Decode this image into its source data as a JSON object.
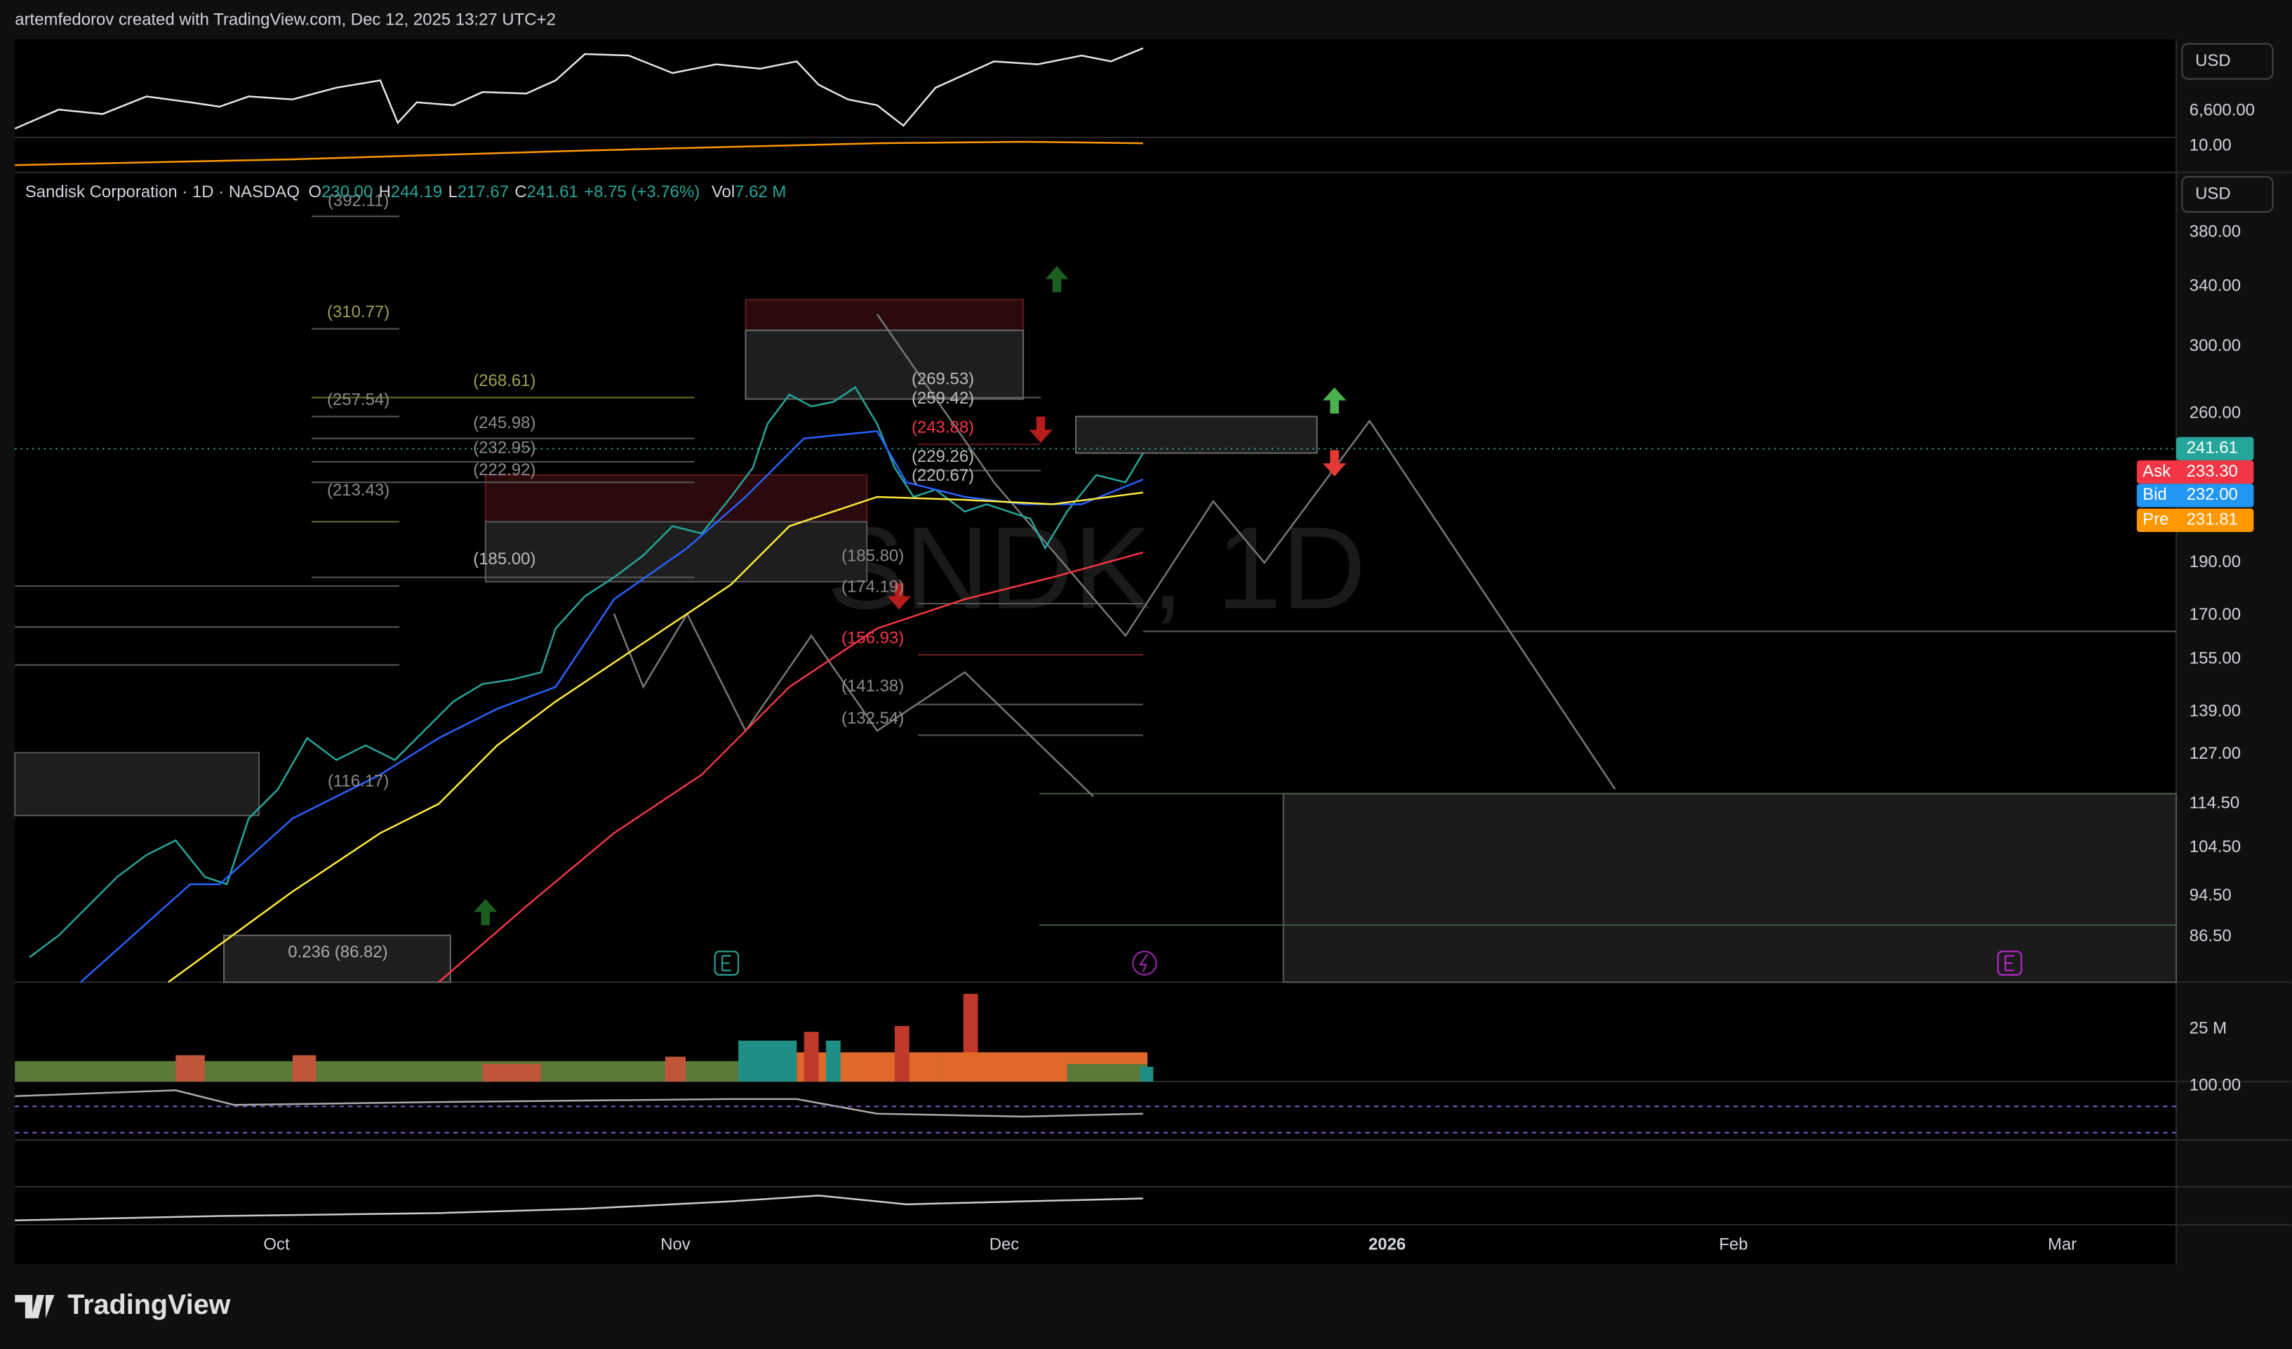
{
  "header": {
    "credit": "artemfedorov created with TradingView.com, Dec 12, 2025 13:27 UTC+2"
  },
  "top_pane": {
    "currency": "USD",
    "axis_labels": [
      "6,600.00",
      "10.00"
    ]
  },
  "legend": {
    "symbol": "Sandisk Corporation · 1D · NASDAQ",
    "open_label": "O",
    "open": "230.00",
    "high_label": "H",
    "high": "244.19",
    "low_label": "L",
    "low": "217.67",
    "close_label": "C",
    "close": "241.61",
    "change": "+8.75 (+3.76%)",
    "vol_label": "Vol",
    "vol": "7.62 M"
  },
  "watermark": "SNDK, 1D",
  "price_axis": {
    "currency": "USD",
    "labels": [
      "380.00",
      "340.00",
      "300.00",
      "260.00",
      "190.00",
      "170.00",
      "155.00",
      "139.00",
      "127.00",
      "114.50",
      "104.50",
      "94.50",
      "86.50"
    ]
  },
  "badges": {
    "last": "241.61",
    "ask_label": "Ask",
    "ask": "233.30",
    "bid_label": "Bid",
    "bid": "232.00",
    "pre_label": "Pre",
    "pre": "231.81"
  },
  "levels": [
    "(392.11)",
    "(310.77)",
    "(268.61)",
    "(257.54)",
    "(245.98)",
    "(232.95)",
    "(222.92)",
    "(213.43)",
    "(185.00)",
    "(269.53)",
    "(259.42)",
    "(243.88)",
    "(229.26)",
    "(220.67)",
    "(185.80)",
    "(174.19)",
    "(156.93)",
    "(141.38)",
    "(132.54)",
    "(116.17)",
    "0.236 (86.82)"
  ],
  "volume_axis": "25 M",
  "indicator_axis": "100.00",
  "time_axis": [
    "Oct",
    "Nov",
    "Dec",
    "2026",
    "Feb",
    "Mar"
  ],
  "footer": {
    "brand": "TradingView"
  }
}
